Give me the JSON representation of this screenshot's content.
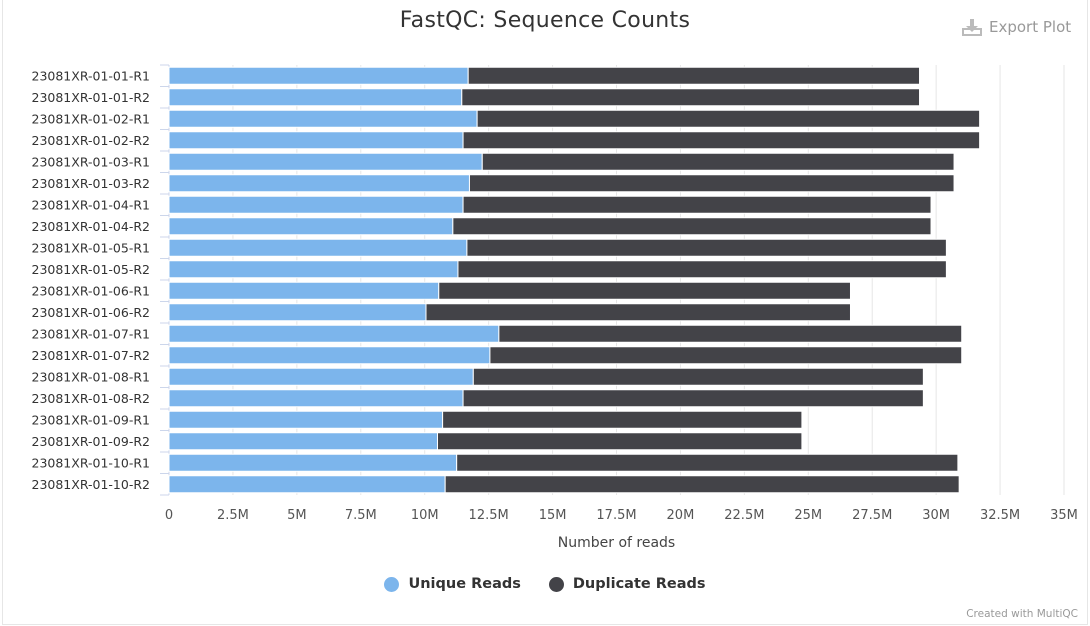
{
  "title": "FastQC: Sequence Counts",
  "export_label": "Export Plot",
  "credit": "Created with MultiQC",
  "colors": {
    "unique": "#7cb5ec",
    "duplicate": "#434348",
    "grid": "#e6e6e6"
  },
  "chart_data": {
    "type": "bar",
    "orientation": "horizontal",
    "stacked": true,
    "title": "FastQC: Sequence Counts",
    "xlabel": "Number of reads",
    "ylabel": "",
    "xlim": [
      0,
      35000000
    ],
    "x_ticks": [
      "0",
      "2.5M",
      "5M",
      "7.5M",
      "10M",
      "12.5M",
      "15M",
      "17.5M",
      "20M",
      "22.5M",
      "25M",
      "27.5M",
      "30M",
      "32.5M",
      "35M"
    ],
    "grid": true,
    "legend_position": "bottom",
    "categories": [
      "23081XR-01-01-R1",
      "23081XR-01-01-R2",
      "23081XR-01-02-R1",
      "23081XR-01-02-R2",
      "23081XR-01-03-R1",
      "23081XR-01-03-R2",
      "23081XR-01-04-R1",
      "23081XR-01-04-R2",
      "23081XR-01-05-R1",
      "23081XR-01-05-R2",
      "23081XR-01-06-R1",
      "23081XR-01-06-R2",
      "23081XR-01-07-R1",
      "23081XR-01-07-R2",
      "23081XR-01-08-R1",
      "23081XR-01-08-R2",
      "23081XR-01-09-R1",
      "23081XR-01-09-R2",
      "23081XR-01-10-R1",
      "23081XR-01-10-R2"
    ],
    "series": [
      {
        "name": "Unique Reads",
        "values": [
          11700000,
          11450000,
          12050000,
          11500000,
          12250000,
          11750000,
          11500000,
          11100000,
          11650000,
          11300000,
          10550000,
          10050000,
          12900000,
          12550000,
          11900000,
          11500000,
          10700000,
          10500000,
          11250000,
          10800000
        ]
      },
      {
        "name": "Duplicate Reads",
        "values": [
          17650000,
          17900000,
          19650000,
          20200000,
          18450000,
          18950000,
          18300000,
          18700000,
          18750000,
          19100000,
          16100000,
          16600000,
          18100000,
          18450000,
          17600000,
          18000000,
          14050000,
          14250000,
          19600000,
          20100000
        ]
      }
    ]
  }
}
